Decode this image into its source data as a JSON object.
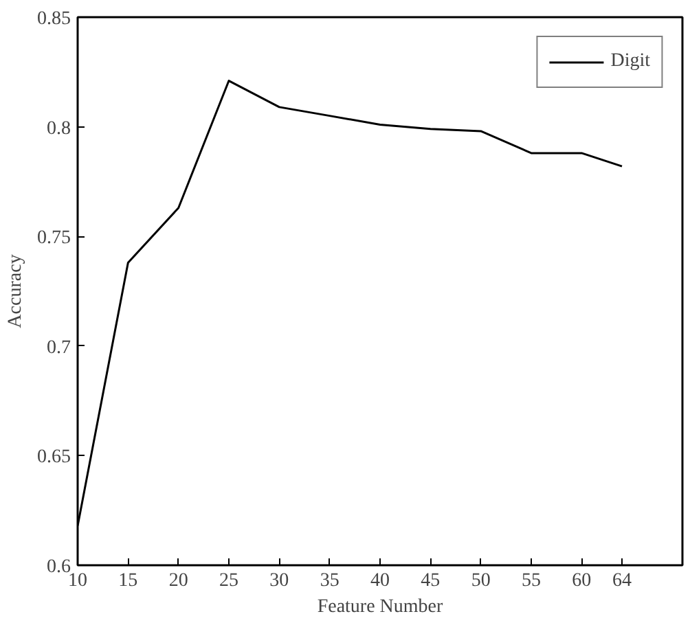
{
  "chart_data": {
    "type": "line",
    "xlabel": "Feature Number",
    "ylabel": "Accuracy",
    "x": [
      10,
      15,
      20,
      25,
      30,
      35,
      40,
      45,
      50,
      55,
      60,
      64
    ],
    "series": [
      {
        "name": "Digit",
        "color": "#000000",
        "values": [
          0.618,
          0.738,
          0.763,
          0.821,
          0.809,
          0.805,
          0.801,
          0.799,
          0.798,
          0.788,
          0.788,
          0.782
        ]
      }
    ],
    "xlim": [
      10,
      70
    ],
    "xticks": [
      10,
      15,
      20,
      25,
      30,
      35,
      40,
      45,
      50,
      55,
      60,
      64
    ],
    "ylim": [
      0.6,
      0.85
    ],
    "yticks": [
      0.6,
      0.65,
      0.7,
      0.75,
      0.8,
      0.85
    ],
    "grid": false,
    "legend": "top right",
    "marker": "none",
    "line_style": "solid"
  }
}
